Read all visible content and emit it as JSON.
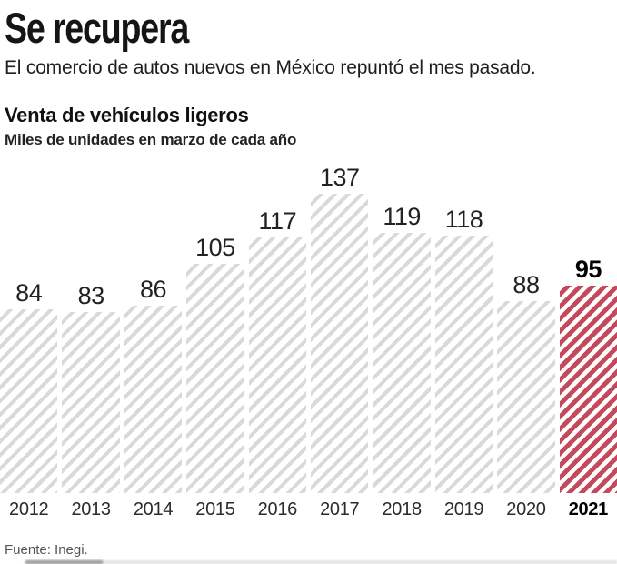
{
  "header": {
    "title": "Se recupera",
    "subtitle": "El comercio de autos nuevos en México repuntó el mes pasado."
  },
  "chart": {
    "title": "Venta de vehículos ligeros",
    "subtitle": "Miles de unidades en marzo de cada año"
  },
  "chart_data": {
    "type": "bar",
    "title": "Venta de vehículos ligeros",
    "subtitle": "Miles de unidades en marzo de cada año",
    "categories": [
      "2012",
      "2013",
      "2014",
      "2015",
      "2016",
      "2017",
      "2018",
      "2019",
      "2020",
      "2021"
    ],
    "values": [
      84,
      83,
      86,
      105,
      117,
      137,
      119,
      118,
      88,
      95
    ],
    "xlabel": "",
    "ylabel": "Miles de unidades",
    "ylim": [
      0,
      140
    ],
    "grid": false,
    "legend_position": "none",
    "bar_style": "diagonal-hatch",
    "default_bar_color": "#d9d9d9",
    "highlight_index": 9,
    "highlight_category": "2021",
    "highlight_color": "#c4495c",
    "value_labels_visible": true
  },
  "footer": {
    "source": "Fuente: Inegi."
  }
}
